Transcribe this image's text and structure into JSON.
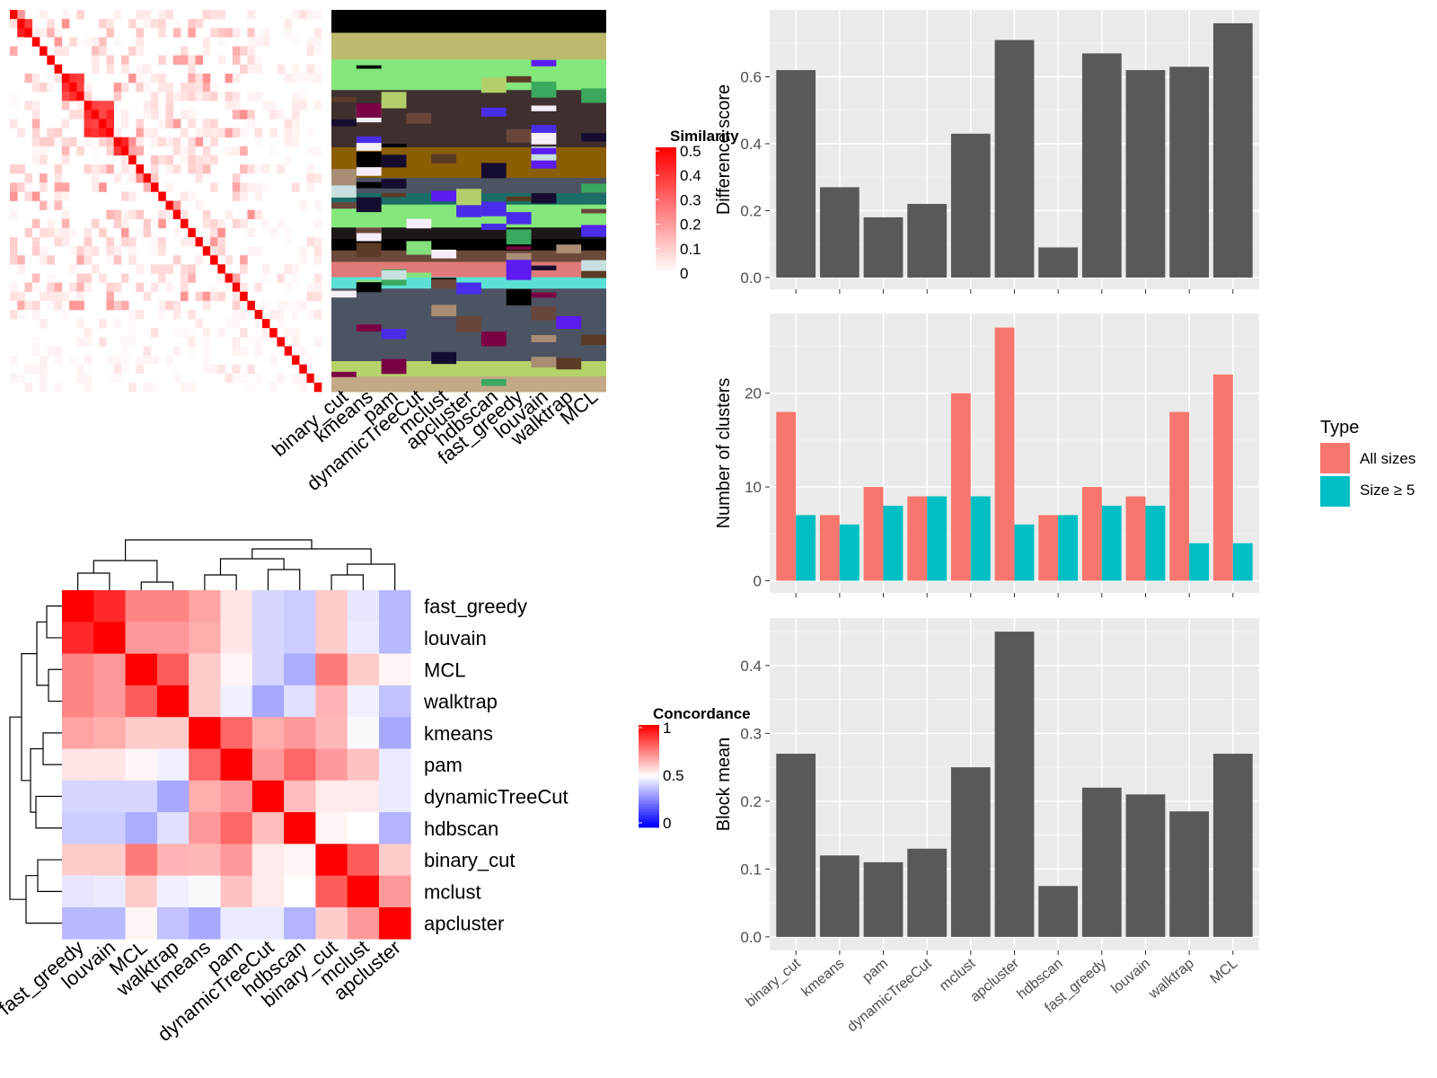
{
  "methods": [
    "binary_cut",
    "kmeans",
    "pam",
    "dynamicTreeCut",
    "mclust",
    "apcluster",
    "hdbscan",
    "fast_greedy",
    "louvain",
    "walktrap",
    "MCL"
  ],
  "similarity_legend": {
    "title": "Similarity",
    "ticks": [
      "0.5",
      "0.4",
      "0.3",
      "0.2",
      "0.1",
      "0"
    ]
  },
  "concordance_legend": {
    "title": "Concordance",
    "ticks": [
      "1",
      "0.5",
      "0"
    ]
  },
  "chart_data": [
    {
      "type": "heatmap",
      "name": "similarity-matrix",
      "description_values": "block diagonal similarity matrix, values 0 to 0.5",
      "value_range": [
        0,
        0.5
      ],
      "colors": {
        "low": "#FFFFFF",
        "high": "#FF0000"
      }
    },
    {
      "type": "heatmap",
      "name": "cluster-assignment-map",
      "columns": [
        "binary_cut",
        "kmeans",
        "pam",
        "dynamicTreeCut",
        "mclust",
        "apcluster",
        "hdbscan",
        "fast_greedy",
        "louvain",
        "walktrap",
        "MCL"
      ]
    },
    {
      "type": "heatmap",
      "name": "concordance-heatmap",
      "order": [
        "fast_greedy",
        "louvain",
        "MCL",
        "walktrap",
        "kmeans",
        "pam",
        "dynamicTreeCut",
        "hdbscan",
        "binary_cut",
        "mclust",
        "apcluster"
      ],
      "value_range": [
        0,
        1
      ],
      "colors": {
        "low": "#0000FF",
        "mid": "#FFFFFF",
        "high": "#FF0000"
      },
      "matrix": [
        [
          1,
          0.92,
          0.74,
          0.74,
          0.68,
          0.55,
          0.42,
          0.4,
          0.6,
          0.45,
          0.36
        ],
        [
          0.92,
          1,
          0.7,
          0.7,
          0.66,
          0.55,
          0.42,
          0.4,
          0.6,
          0.46,
          0.36
        ],
        [
          0.74,
          0.7,
          1,
          0.82,
          0.6,
          0.52,
          0.42,
          0.34,
          0.76,
          0.6,
          0.52
        ],
        [
          0.74,
          0.7,
          0.82,
          1,
          0.6,
          0.47,
          0.33,
          0.44,
          0.65,
          0.47,
          0.38
        ],
        [
          0.68,
          0.66,
          0.6,
          0.6,
          1,
          0.8,
          0.66,
          0.7,
          0.64,
          0.49,
          0.33
        ],
        [
          0.55,
          0.55,
          0.52,
          0.47,
          0.8,
          1,
          0.7,
          0.8,
          0.7,
          0.62,
          0.46
        ],
        [
          0.42,
          0.42,
          0.42,
          0.33,
          0.66,
          0.7,
          1,
          0.63,
          0.54,
          0.54,
          0.46
        ],
        [
          0.4,
          0.4,
          0.34,
          0.44,
          0.7,
          0.8,
          0.63,
          1,
          0.52,
          0.5,
          0.35
        ],
        [
          0.6,
          0.6,
          0.76,
          0.65,
          0.64,
          0.7,
          0.54,
          0.52,
          1,
          0.82,
          0.6
        ],
        [
          0.45,
          0.46,
          0.6,
          0.47,
          0.49,
          0.62,
          0.54,
          0.5,
          0.82,
          1,
          0.7
        ],
        [
          0.36,
          0.36,
          0.52,
          0.38,
          0.33,
          0.46,
          0.46,
          0.35,
          0.6,
          0.7,
          1
        ]
      ]
    },
    {
      "type": "bar",
      "name": "difference-score",
      "categories": [
        "binary_cut",
        "kmeans",
        "pam",
        "dynamicTreeCut",
        "mclust",
        "apcluster",
        "hdbscan",
        "fast_greedy",
        "louvain",
        "walktrap",
        "MCL"
      ],
      "values": [
        0.62,
        0.27,
        0.18,
        0.22,
        0.43,
        0.71,
        0.09,
        0.67,
        0.62,
        0.63,
        0.76
      ],
      "ylabel": "Difference score",
      "ylim": [
        -0.035,
        0.8
      ],
      "yticks": [
        0.0,
        0.2,
        0.4,
        0.6
      ],
      "grid": true
    },
    {
      "type": "bar",
      "name": "number-of-clusters",
      "categories": [
        "binary_cut",
        "kmeans",
        "pam",
        "dynamicTreeCut",
        "mclust",
        "apcluster",
        "hdbscan",
        "fast_greedy",
        "louvain",
        "walktrap",
        "MCL"
      ],
      "series": [
        {
          "name": "All sizes",
          "color": "#F8766D",
          "values": [
            18,
            7,
            10,
            9,
            20,
            27,
            7,
            10,
            9,
            18,
            22
          ]
        },
        {
          "name": "Size ≥ 5",
          "color": "#00BFC4",
          "values": [
            7,
            6,
            8,
            9,
            9,
            6,
            7,
            8,
            8,
            4,
            4
          ]
        }
      ],
      "ylabel": "Number of clusters",
      "ylim": [
        -1.3,
        28.5
      ],
      "yticks": [
        0,
        10,
        20
      ],
      "legend_title": "Type",
      "legend_position": "right",
      "grid": true
    },
    {
      "type": "bar",
      "name": "block-mean",
      "categories": [
        "binary_cut",
        "kmeans",
        "pam",
        "dynamicTreeCut",
        "mclust",
        "apcluster",
        "hdbscan",
        "fast_greedy",
        "louvain",
        "walktrap",
        "MCL"
      ],
      "values": [
        0.27,
        0.12,
        0.11,
        0.13,
        0.25,
        0.45,
        0.075,
        0.22,
        0.21,
        0.185,
        0.27
      ],
      "ylabel": "Block mean",
      "ylim": [
        -0.02,
        0.47
      ],
      "yticks": [
        0.0,
        0.1,
        0.2,
        0.3,
        0.4
      ],
      "grid": true
    }
  ]
}
